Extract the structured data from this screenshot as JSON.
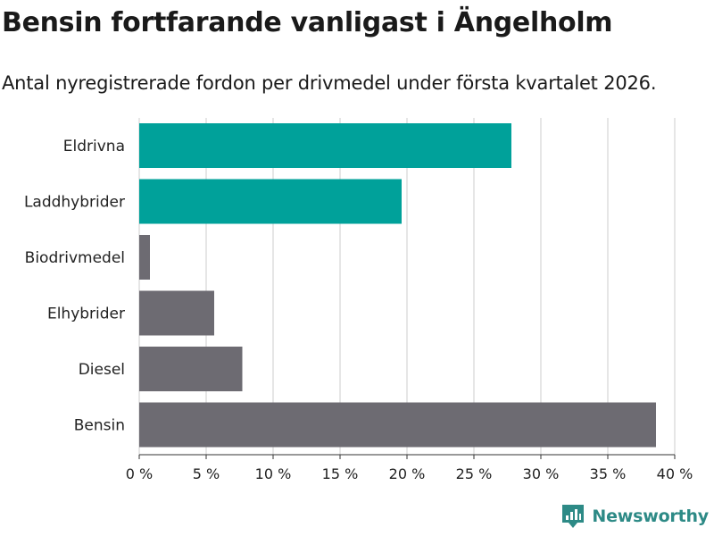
{
  "header": {
    "title": "Bensin fortfarande vanligast i Ängelholm",
    "subtitle": "Antal nyregistrerade fordon per drivmedel under första kvartalet 2026."
  },
  "brand": {
    "name": "Newsworthy",
    "color": "#2d8a86"
  },
  "colors": {
    "highlight": "#00a19a",
    "default": "#6d6b72",
    "grid": "#dedede",
    "axis": "#333333"
  },
  "chart_data": {
    "type": "bar",
    "orientation": "horizontal",
    "categories": [
      "Eldrivna",
      "Laddhybrider",
      "Biodrivmedel",
      "Elhybrider",
      "Diesel",
      "Bensin"
    ],
    "values": [
      27.8,
      19.6,
      0.8,
      5.6,
      7.7,
      38.6
    ],
    "highlighted": [
      true,
      true,
      false,
      false,
      false,
      false
    ],
    "xlabel": "",
    "ylabel": "",
    "xlim": [
      0,
      40
    ],
    "ticks": [
      0,
      5,
      10,
      15,
      20,
      25,
      30,
      35,
      40
    ],
    "tick_suffix": " %",
    "grid": true
  }
}
